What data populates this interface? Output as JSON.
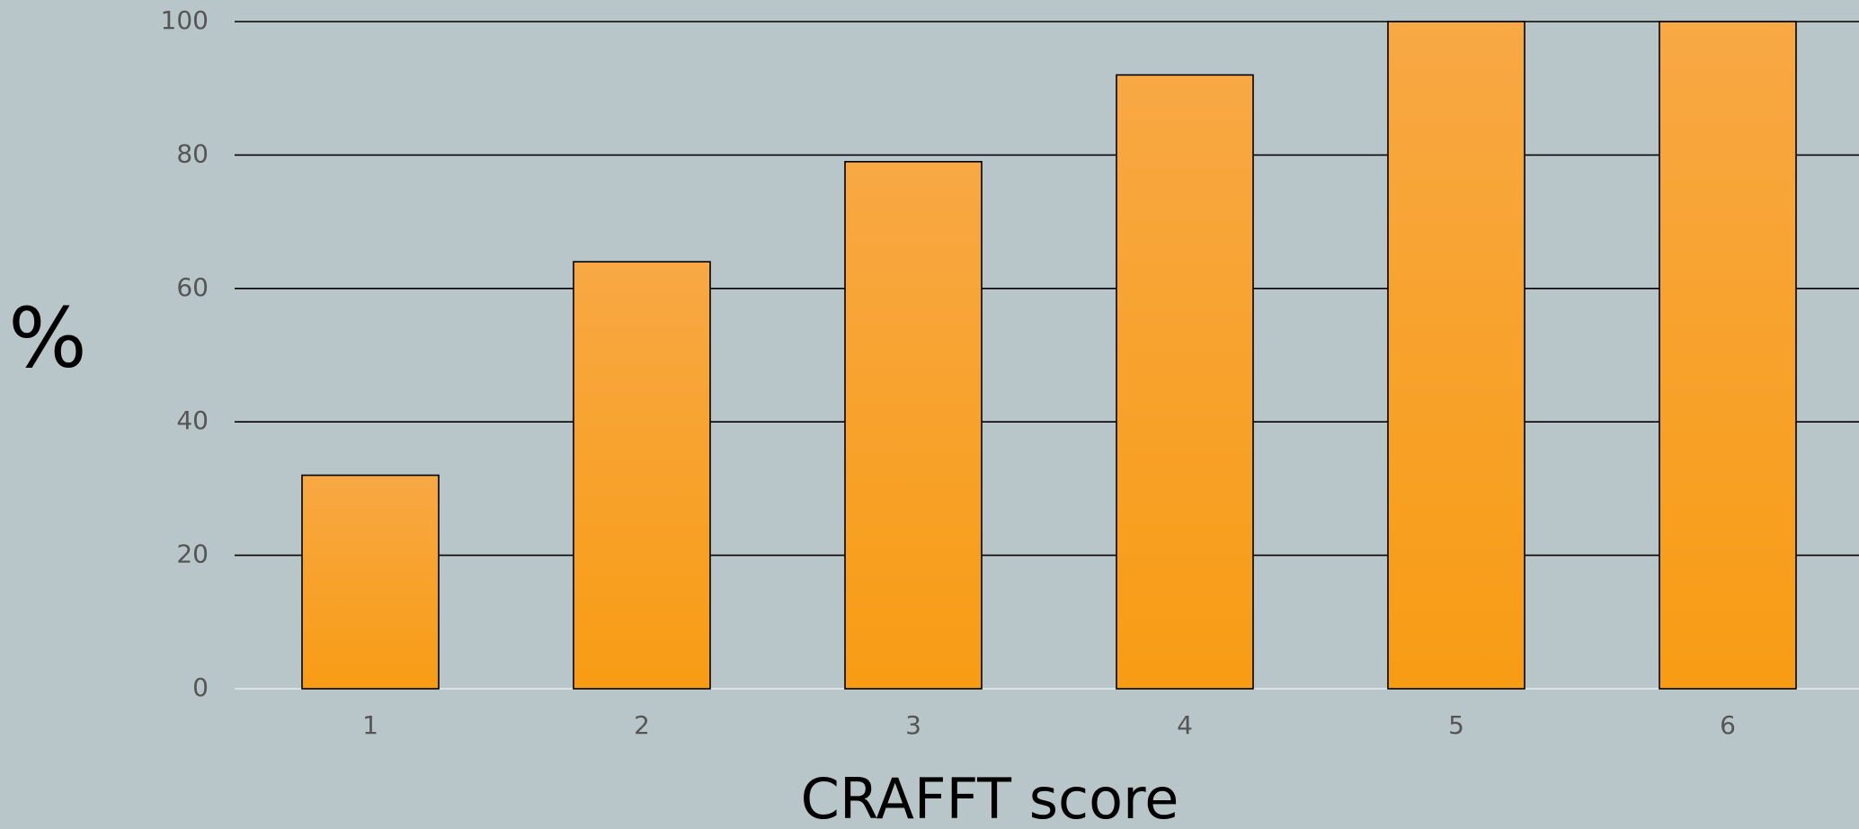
{
  "chart_data": {
    "type": "bar",
    "x_label": "CRAFFT score",
    "y_label": "%",
    "categories": [
      "1",
      "2",
      "3",
      "4",
      "5",
      "6"
    ],
    "values": [
      32,
      64,
      79,
      92,
      100,
      100
    ],
    "color": "#f89c14",
    "ylim": [
      0,
      100
    ],
    "yticks": [
      0,
      20,
      40,
      60,
      80,
      100
    ],
    "grid": true
  }
}
